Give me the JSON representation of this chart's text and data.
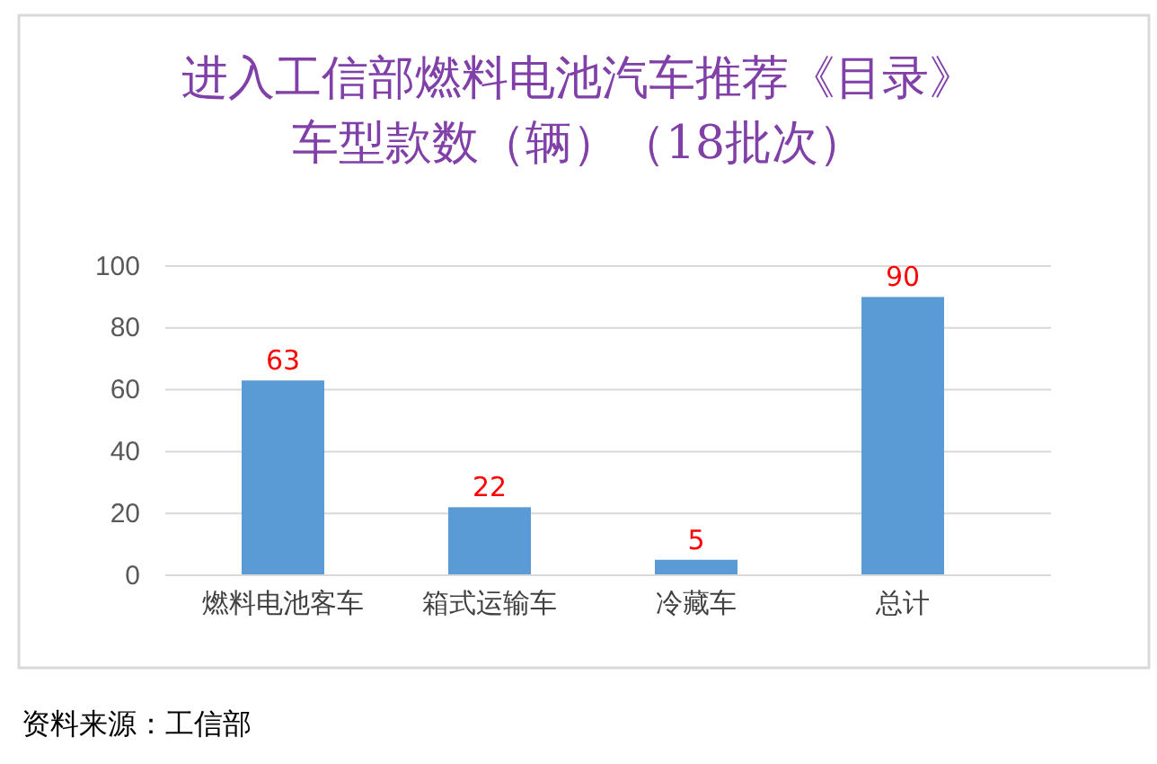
{
  "chart_data": {
    "type": "bar",
    "title": "进入工信部燃料电池汽车推荐《目录》车型款数（辆）（18批次）",
    "categories": [
      "燃料电池客车",
      "箱式运输车",
      "冷藏车",
      "总计"
    ],
    "values": [
      63,
      22,
      5,
      90
    ],
    "color": "#5b9bd5",
    "ylim": [
      0,
      100
    ],
    "yticks": [
      0,
      20,
      40,
      60,
      80,
      100
    ],
    "grid": "y",
    "data_labels": true,
    "annotations": [
      "资料来源：工信部"
    ]
  }
}
